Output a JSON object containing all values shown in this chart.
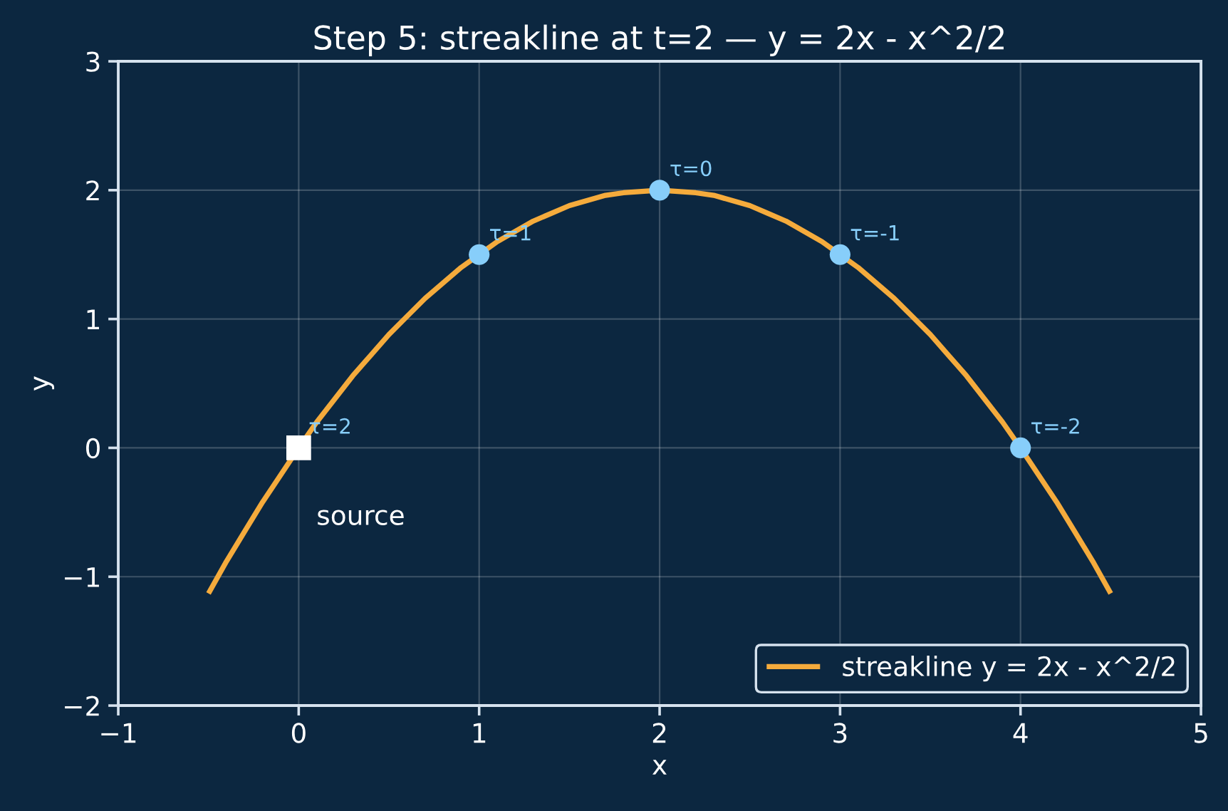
{
  "chart_data": {
    "type": "line",
    "title": "Step 5: streakline at t=2 — y = 2x - x^2/2",
    "xlabel": "x",
    "ylabel": "y",
    "xlim": [
      -1,
      5
    ],
    "ylim": [
      -2,
      3
    ],
    "xticks": [
      {
        "value": -1,
        "label": "−1"
      },
      0,
      1,
      2,
      3,
      4,
      5
    ],
    "yticks": [
      {
        "value": -2,
        "label": "−2"
      },
      {
        "value": -1,
        "label": "−1"
      },
      0,
      1,
      2,
      3
    ],
    "grid": true,
    "legend": "bottom right",
    "series": [
      {
        "name": "streakline y = 2x - x^2/2",
        "color": "#f5ab3c",
        "marker": "none",
        "line_style": "solid",
        "x": [
          -0.5,
          -0.4,
          -0.3,
          -0.2,
          -0.1,
          0,
          0.1,
          0.2,
          0.3,
          0.4,
          0.5,
          0.6,
          0.7,
          0.8,
          0.9,
          1,
          1.1,
          1.2,
          1.3,
          1.4,
          1.5,
          1.6,
          1.7,
          1.8,
          1.9,
          2,
          2.1,
          2.2,
          2.3,
          2.4,
          2.5,
          2.6,
          2.7,
          2.8,
          2.9,
          3,
          3.1,
          3.2,
          3.3,
          3.4,
          3.5,
          3.6,
          3.7,
          3.8,
          3.9,
          4,
          4.1,
          4.2,
          4.3,
          4.4,
          4.5
        ],
        "values": [
          -1.13,
          -0.88,
          -0.65,
          -0.42,
          -0.21,
          0,
          0.2,
          0.38,
          0.56,
          0.72,
          0.88,
          1.02,
          1.16,
          1.28,
          1.4,
          1.5,
          1.6,
          1.68,
          1.76,
          1.82,
          1.88,
          1.92,
          1.96,
          1.98,
          1.99,
          2,
          1.99,
          1.98,
          1.96,
          1.92,
          1.88,
          1.82,
          1.76,
          1.68,
          1.6,
          1.5,
          1.4,
          1.28,
          1.16,
          1.02,
          0.88,
          0.72,
          0.56,
          0.38,
          0.2,
          0,
          -0.21,
          -0.42,
          -0.65,
          -0.88,
          -1.13
        ]
      },
      {
        "type": "scatter",
        "color": "#87cefa",
        "marker": "circle",
        "x": [
          1,
          2,
          3,
          4
        ],
        "values": [
          1.5,
          2,
          1.5,
          0
        ]
      },
      {
        "type": "scatter",
        "color": "#ffffff",
        "marker": "square",
        "x": [
          0
        ],
        "values": [
          0
        ]
      }
    ],
    "annotations": [
      {
        "text": "τ=2",
        "x": 0,
        "y": 0
      },
      {
        "text": "τ=1",
        "x": 1,
        "y": 1.5
      },
      {
        "text": "τ=0",
        "x": 2,
        "y": 2
      },
      {
        "text": "τ=-1",
        "x": 3,
        "y": 1.5
      },
      {
        "text": "τ=-2",
        "x": 4,
        "y": 0
      },
      "source"
    ]
  }
}
